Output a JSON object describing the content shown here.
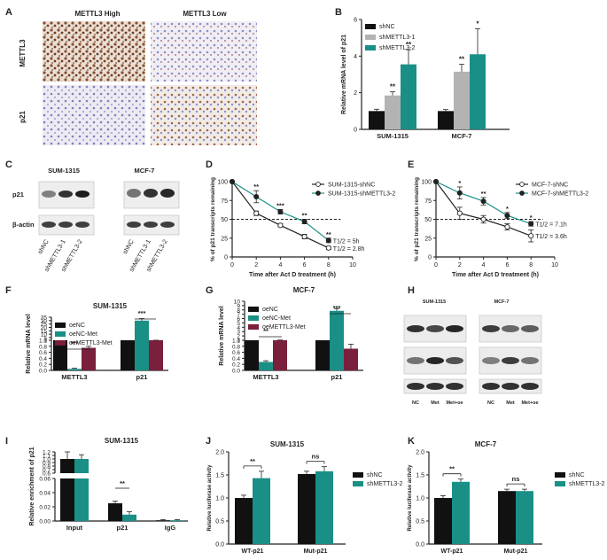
{
  "panel_letters": [
    "A",
    "B",
    "C",
    "D",
    "E",
    "F",
    "G",
    "H",
    "I",
    "J",
    "K"
  ],
  "colors": {
    "black": "#111111",
    "gray": "#b3b3b3",
    "teal": "#1a8f86",
    "maroon": "#7a1f3c",
    "brown": "#8a4f2e",
    "blue": "#8c8fd0"
  },
  "panel_a": {
    "col_labels": [
      "METTL3 High",
      "METTL3 Low"
    ],
    "row_labels": [
      "METTL3",
      "p21"
    ]
  },
  "panel_c": {
    "groups": [
      "SUM-1315",
      "MCF-7"
    ],
    "rows": [
      "p21",
      "β-actin"
    ],
    "lanes": [
      "shNC",
      "shMETTL3-1",
      "shMETTL3-2"
    ]
  },
  "panel_h": {
    "groups": [
      "SUM-1315",
      "MCF-7"
    ],
    "rows": [
      "METTL3",
      "p21",
      "β-actin"
    ],
    "lanes": [
      "NC",
      "Met",
      "Met+oe"
    ]
  },
  "chart_data": [
    {
      "panel": "B",
      "type": "bar",
      "title": "",
      "xlabel": "",
      "ylabel": "Relative  mRNA level of p21",
      "ylim": [
        0,
        6
      ],
      "yticks": [
        0,
        2,
        4,
        6
      ],
      "categories": [
        "SUM-1315",
        "MCF-7"
      ],
      "series": [
        {
          "name": "shNC",
          "values": [
            1.0,
            1.0
          ],
          "errors": [
            0.1,
            0.08
          ]
        },
        {
          "name": "shMETTL3-1",
          "values": [
            1.85,
            3.15
          ],
          "errors": [
            0.2,
            0.4
          ]
        },
        {
          "name": "shMETTL3-2",
          "values": [
            3.55,
            4.1
          ],
          "errors": [
            0.8,
            1.4
          ]
        }
      ],
      "annotations": [
        {
          "category": "SUM-1315",
          "series": 1,
          "text": "**"
        },
        {
          "category": "SUM-1315",
          "series": 2,
          "text": "**"
        },
        {
          "category": "MCF-7",
          "series": 1,
          "text": "**"
        },
        {
          "category": "MCF-7",
          "series": 2,
          "text": "*"
        }
      ],
      "legend": "top-left"
    },
    {
      "panel": "D",
      "type": "line",
      "title": "",
      "xlabel": "Time after Act D treatment (h)",
      "ylabel": "% of p21 transcripts remaining",
      "xlim": [
        0,
        10
      ],
      "ylim": [
        0,
        100
      ],
      "xticks": [
        0,
        2,
        4,
        6,
        8,
        10
      ],
      "yticks": [
        0,
        25,
        50,
        75,
        100
      ],
      "x": [
        0,
        2,
        4,
        6,
        8
      ],
      "series": [
        {
          "name": "SUM-1315-shNC",
          "values": [
            100,
            58,
            42,
            27,
            12
          ],
          "errors": [
            0,
            3,
            2,
            3,
            2
          ],
          "marker": "open"
        },
        {
          "name": "SUM-1315-shMETTL3-2",
          "values": [
            100,
            80,
            60,
            47,
            22
          ],
          "errors": [
            0,
            8,
            3,
            3,
            3
          ],
          "marker": "filled"
        }
      ],
      "annotations": [
        {
          "x": 2,
          "text": "**"
        },
        {
          "x": 4,
          "text": "***"
        },
        {
          "x": 6,
          "text": "**"
        },
        {
          "x": 8,
          "text": "**"
        }
      ],
      "half_life": [
        "T1/2 = 5h",
        "T1/2 = 2.8h"
      ],
      "reference_line": 50,
      "legend": "top-right"
    },
    {
      "panel": "E",
      "type": "line",
      "title": "",
      "xlabel": "Time after Act D treatment (h)",
      "ylabel": "% of p21 transcripts remaining",
      "xlim": [
        0,
        10
      ],
      "ylim": [
        0,
        100
      ],
      "xticks": [
        0,
        2,
        4,
        6,
        8,
        10
      ],
      "yticks": [
        0,
        25,
        50,
        75,
        100
      ],
      "x": [
        0,
        2,
        4,
        6,
        8
      ],
      "series": [
        {
          "name": "MCF-7-shNC",
          "values": [
            100,
            58,
            50,
            40,
            28
          ],
          "errors": [
            0,
            8,
            5,
            4,
            8
          ],
          "marker": "open"
        },
        {
          "name": "MCF-7-shMETTL3-2",
          "values": [
            100,
            85,
            74,
            55,
            44
          ],
          "errors": [
            0,
            8,
            5,
            4,
            3
          ],
          "marker": "filled"
        }
      ],
      "annotations": [
        {
          "x": 2,
          "text": "*"
        },
        {
          "x": 4,
          "text": "**"
        },
        {
          "x": 6,
          "text": "*"
        },
        {
          "x": 8,
          "text": "*"
        }
      ],
      "half_life": [
        "T1/2 = 7.1h",
        "T1/2 = 3.6h"
      ],
      "reference_line": 50,
      "legend": "top-right"
    },
    {
      "panel": "F",
      "type": "bar",
      "title": "SUM-1315",
      "xlabel": "",
      "ylabel": "Relative  mRNA level",
      "axis_break": true,
      "lower_ticks": [
        "0.0",
        "0.2",
        "0.4",
        "0.6",
        "0.8",
        "1.0"
      ],
      "upper_ticks": [
        "1",
        "5",
        "10",
        "15",
        "20",
        "25",
        "30",
        "35"
      ],
      "categories": [
        "METTL3",
        "p21"
      ],
      "series": [
        {
          "name": "oeNC",
          "values": [
            1.0,
            1.0
          ],
          "errors": [
            0,
            0
          ]
        },
        {
          "name": "oeNC-Met",
          "values": [
            0.05,
            30
          ],
          "errors": [
            0.02,
            3
          ]
        },
        {
          "name": "oeMETTL3-Met",
          "values": [
            0.75,
            1.0
          ],
          "errors": [
            0.05,
            0.05
          ]
        }
      ],
      "annotations": [
        {
          "category": "METTL3",
          "text": "***"
        },
        {
          "category": "p21",
          "text": "***"
        }
      ],
      "legend": "top-left"
    },
    {
      "panel": "G",
      "type": "bar",
      "title": "MCF-7",
      "xlabel": "",
      "ylabel": "Relative  mRNA level",
      "axis_break": true,
      "lower_ticks": [
        "0.0",
        "0.2",
        "0.4",
        "0.6",
        "0.8",
        "1.0"
      ],
      "upper_ticks": [
        "1",
        "2",
        "3",
        "4",
        "5",
        "6",
        "7",
        "8",
        "9",
        "10"
      ],
      "categories": [
        "METTL3",
        "p21"
      ],
      "series": [
        {
          "name": "oeNC",
          "values": [
            1.0,
            1.0
          ],
          "errors": [
            0,
            0
          ]
        },
        {
          "name": "oeNC-Met",
          "values": [
            0.28,
            7.8
          ],
          "errors": [
            0.04,
            0.5
          ]
        },
        {
          "name": "oeMETTL3-Met",
          "values": [
            1.0,
            0.72
          ],
          "errors": [
            0.05,
            0.15
          ]
        }
      ],
      "annotations": [
        {
          "category": "METTL3",
          "text": "**"
        },
        {
          "category": "p21",
          "text": "***"
        }
      ],
      "legend": "top-left"
    },
    {
      "panel": "I",
      "type": "bar",
      "title": "SUM-1315",
      "xlabel": "",
      "ylabel": "Relative enrichment of p21",
      "axis_break": true,
      "lower_ticks": [
        "0.00",
        "0.02",
        "0.04",
        "0.06"
      ],
      "upper_ticks": [
        "0.6",
        "0.7",
        "0.8",
        "0.9",
        "1.0",
        "1.1",
        "1.2"
      ],
      "categories": [
        "Input",
        "p21",
        "IgG"
      ],
      "series": [
        {
          "name": "black",
          "values": [
            1.0,
            0.025,
            0.001
          ],
          "errors": [
            0.2,
            0.003,
            0.001
          ]
        },
        {
          "name": "teal",
          "values": [
            1.0,
            0.009,
            0.001
          ],
          "errors": [
            0.12,
            0.004,
            0.001
          ]
        }
      ],
      "annotations": [
        {
          "category": "p21",
          "text": "**"
        }
      ]
    },
    {
      "panel": "J",
      "type": "bar",
      "title": "SUM-1315",
      "xlabel": "",
      "ylabel": "Relative luciferase activity",
      "ylim": [
        0,
        2.0
      ],
      "yticks": [
        "0.0",
        "0.5",
        "1.0",
        "1.5",
        "2.0"
      ],
      "categories": [
        "WT-p21",
        "Mut-p21"
      ],
      "series": [
        {
          "name": "shNC",
          "values": [
            1.0,
            1.52
          ],
          "errors": [
            0.06,
            0.06
          ]
        },
        {
          "name": "shMETTL3-2",
          "values": [
            1.43,
            1.58
          ],
          "errors": [
            0.15,
            0.1
          ]
        }
      ],
      "annotations": [
        {
          "category": "WT-p21",
          "text": "**"
        },
        {
          "category": "Mut-p21",
          "text": "ns"
        }
      ],
      "legend": "right"
    },
    {
      "panel": "K",
      "type": "bar",
      "title": "MCF-7",
      "xlabel": "",
      "ylabel": "Relative luciferase activity",
      "ylim": [
        0,
        2.0
      ],
      "yticks": [
        "0.0",
        "0.5",
        "1.0",
        "1.5",
        "2.0"
      ],
      "categories": [
        "WT-p21",
        "Mut-p21"
      ],
      "series": [
        {
          "name": "shNC",
          "values": [
            1.0,
            1.15
          ],
          "errors": [
            0.05,
            0.04
          ]
        },
        {
          "name": "shMETTL3-2",
          "values": [
            1.35,
            1.15
          ],
          "errors": [
            0.06,
            0.04
          ]
        }
      ],
      "annotations": [
        {
          "category": "WT-p21",
          "text": "**"
        },
        {
          "category": "Mut-p21",
          "text": "ns"
        }
      ],
      "legend": "right"
    }
  ]
}
